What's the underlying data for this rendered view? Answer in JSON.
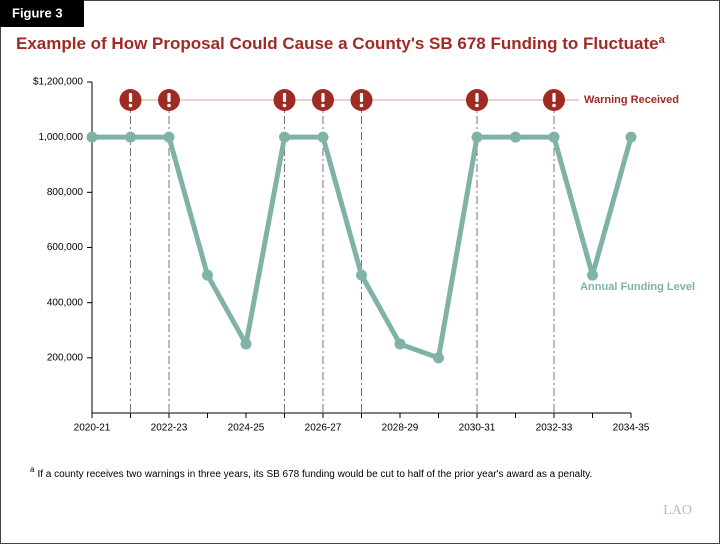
{
  "figure_label": "Figure 3",
  "chart_data": {
    "type": "line",
    "title": "Example of How Proposal Could Cause a County's SB 678 Funding to Fluctuate",
    "title_note_marker": "a",
    "categories": [
      "2020-21",
      null,
      "2022-23",
      null,
      "2024-25",
      null,
      "2026-27",
      null,
      "2028-29",
      null,
      "2030-31",
      null,
      "2032-33",
      null,
      "2034-35"
    ],
    "series": [
      {
        "name": "Annual Funding Level",
        "color": "#7fb3a7",
        "values": [
          1000000,
          1000000,
          1000000,
          500000,
          250000,
          1000000,
          1000000,
          500000,
          250000,
          200000,
          1000000,
          1000000,
          1000000,
          500000,
          1000000
        ]
      }
    ],
    "warning_label": "Warning Received",
    "warning_color": "#a02b23",
    "warning_received": [
      false,
      true,
      true,
      false,
      false,
      true,
      true,
      true,
      false,
      false,
      true,
      false,
      true,
      false,
      false
    ],
    "ylim": [
      0,
      1200000
    ],
    "yticks": [
      {
        "value": 200000,
        "label": "200,000"
      },
      {
        "value": 400000,
        "label": "400,000"
      },
      {
        "value": 600000,
        "label": "600,000"
      },
      {
        "value": 800000,
        "label": "800,000"
      },
      {
        "value": 1000000,
        "label": "1,000,000"
      },
      {
        "value": 1200000,
        "label": "$1,200,000"
      }
    ]
  },
  "footnote": {
    "marker": "a",
    "text": "If a county receives two warnings in three years, its SB 678 funding would be cut to half of the prior year's award as a penalty."
  },
  "logo": "LAO"
}
